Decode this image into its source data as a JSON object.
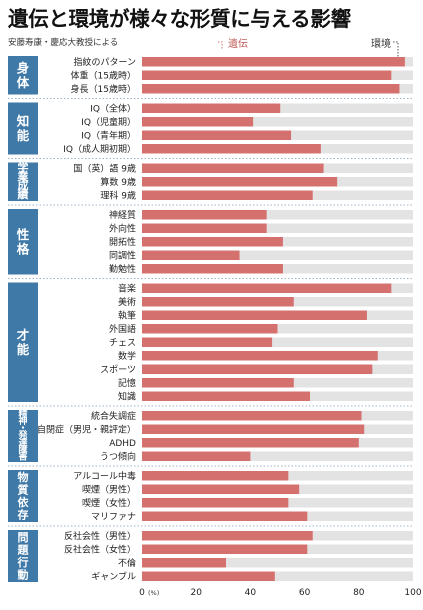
{
  "title": "遺伝と環境が様々な形質に与える影響",
  "subtitle": "安藤寿康・慶応大教授による",
  "legend": {
    "genetics": "遺伝",
    "environment": "環境"
  },
  "colors": {
    "genetics": "#d4706e",
    "environment": "#e3e3e3",
    "group_label_bg": "#3f79a8",
    "group_label_text": "#ffffff"
  },
  "chart_data": {
    "type": "bar",
    "orientation": "horizontal",
    "stacked": true,
    "xlim": [
      0,
      100
    ],
    "x_ticks": [
      "0",
      "20",
      "40",
      "60",
      "80",
      "100"
    ],
    "x_unit": "(%)",
    "legend_entries": [
      "遺伝",
      "環境"
    ],
    "groups": [
      {
        "name": "身体",
        "items": [
          {
            "label": "指紋のパターン",
            "value": 97
          },
          {
            "label": "体重（15歳時）",
            "value": 92
          },
          {
            "label": "身長（15歳時）",
            "value": 95
          }
        ]
      },
      {
        "name": "知能",
        "items": [
          {
            "label": "IQ（全体）",
            "value": 51
          },
          {
            "label": "IQ（児童期）",
            "value": 41
          },
          {
            "label": "IQ（青年期）",
            "value": 55
          },
          {
            "label": "IQ（成人期初期）",
            "value": 66
          }
        ]
      },
      {
        "name": "学業成績",
        "items": [
          {
            "label": "国（英）語 9歳",
            "value": 67
          },
          {
            "label": "算数 9歳",
            "value": 72
          },
          {
            "label": "理科 9歳",
            "value": 63
          }
        ]
      },
      {
        "name": "性格",
        "items": [
          {
            "label": "神経質",
            "value": 46
          },
          {
            "label": "外向性",
            "value": 46
          },
          {
            "label": "開拓性",
            "value": 52
          },
          {
            "label": "同調性",
            "value": 36
          },
          {
            "label": "勤勉性",
            "value": 52
          }
        ]
      },
      {
        "name": "才能",
        "items": [
          {
            "label": "音楽",
            "value": 92
          },
          {
            "label": "美術",
            "value": 56
          },
          {
            "label": "執筆",
            "value": 83
          },
          {
            "label": "外国語",
            "value": 50
          },
          {
            "label": "チェス",
            "value": 48
          },
          {
            "label": "数学",
            "value": 87
          },
          {
            "label": "スポーツ",
            "value": 85
          },
          {
            "label": "記憶",
            "value": 56
          },
          {
            "label": "知識",
            "value": 62
          }
        ]
      },
      {
        "name": "精神・発達障害",
        "items": [
          {
            "label": "統合失調症",
            "value": 81
          },
          {
            "label": "自閉症（男児・親評定）",
            "value": 82
          },
          {
            "label": "ADHD",
            "value": 80
          },
          {
            "label": "うつ傾向",
            "value": 40
          }
        ]
      },
      {
        "name": "物質依存",
        "items": [
          {
            "label": "アルコール中毒",
            "value": 54
          },
          {
            "label": "喫煙（男性）",
            "value": 58
          },
          {
            "label": "喫煙（女性）",
            "value": 54
          },
          {
            "label": "マリファナ",
            "value": 61
          }
        ]
      },
      {
        "name": "問題行動",
        "items": [
          {
            "label": "反社会性（男性）",
            "value": 63
          },
          {
            "label": "反社会性（女性）",
            "value": 61
          },
          {
            "label": "不倫",
            "value": 31
          },
          {
            "label": "ギャンブル",
            "value": 49
          }
        ]
      }
    ]
  }
}
